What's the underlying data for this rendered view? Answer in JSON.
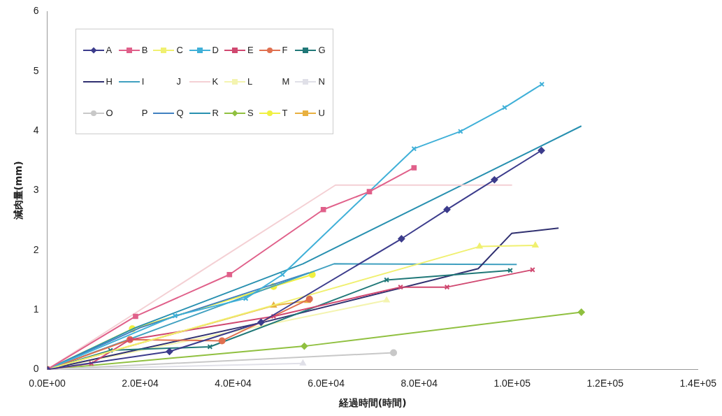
{
  "chart_data": {
    "type": "line",
    "xlabel": "経過時間(時間)",
    "ylabel": "減肉量(mm)",
    "legend": "top left",
    "xlim": [
      0,
      140000
    ],
    "ylim": [
      0,
      6
    ],
    "xticks": [
      {
        "value": 0,
        "label": "0.0E+00"
      },
      {
        "value": 20000,
        "label": "2.0E+04"
      },
      {
        "value": 40000,
        "label": "4.0E+04"
      },
      {
        "value": 60000,
        "label": "6.0E+04"
      },
      {
        "value": 80000,
        "label": "8.0E+04"
      },
      {
        "value": 100000,
        "label": "1.0E+05"
      },
      {
        "value": 120000,
        "label": "1.2E+05"
      },
      {
        "value": 140000,
        "label": "1.4E+05"
      }
    ],
    "yticks": [
      0,
      1,
      2,
      3,
      4,
      5,
      6
    ],
    "series": [
      {
        "name": "A",
        "color": "#3c3c8c",
        "marker": "diamond",
        "x": [
          0,
          26300,
          46000,
          76200,
          86000,
          96200,
          106300
        ],
        "values": [
          0,
          0.3,
          0.79,
          2.19,
          2.68,
          3.18,
          3.67
        ]
      },
      {
        "name": "B",
        "color": "#e0608a",
        "marker": "square",
        "x": [
          0,
          19000,
          39200,
          59400,
          69300,
          78900
        ],
        "values": [
          0,
          0.89,
          1.59,
          2.68,
          2.98,
          3.38
        ]
      },
      {
        "name": "C",
        "color": "#f0f070",
        "marker": "triangle",
        "x": [
          0,
          93000,
          105000
        ],
        "values": [
          0,
          2.06,
          2.08
        ]
      },
      {
        "name": "D",
        "color": "#40b0d8",
        "marker": "cross",
        "x": [
          0,
          27500,
          42700,
          50600,
          78900,
          88900,
          98400,
          106400
        ],
        "values": [
          0,
          0.9,
          1.19,
          1.59,
          3.7,
          3.99,
          4.39,
          4.78
        ]
      },
      {
        "name": "E",
        "color": "#d04870",
        "marker": "cross",
        "x": [
          0,
          9500,
          17800,
          48700,
          76000,
          86000,
          104400
        ],
        "values": [
          0,
          0.1,
          0.5,
          0.89,
          1.38,
          1.38,
          1.67
        ]
      },
      {
        "name": "F",
        "color": "#e07050",
        "marker": "circle",
        "x": [
          0,
          17800,
          37600,
          56400
        ],
        "values": [
          0,
          0.5,
          0.48,
          1.18
        ]
      },
      {
        "name": "G",
        "color": "#207878",
        "marker": "cross",
        "x": [
          0,
          13600,
          35000,
          73000,
          99600
        ],
        "values": [
          0,
          0.32,
          0.38,
          1.5,
          1.66
        ]
      },
      {
        "name": "H",
        "color": "#303070",
        "marker": "none",
        "x": [
          0,
          47000,
          92700,
          99900,
          110000
        ],
        "values": [
          0,
          0.8,
          1.69,
          2.28,
          2.37
        ]
      },
      {
        "name": "I",
        "color": "#40a0c0",
        "marker": "none",
        "x": [
          0,
          61700,
          101000
        ],
        "values": [
          0,
          1.77,
          1.76
        ]
      },
      {
        "name": "J"
      },
      {
        "name": "K",
        "color": "#f4d0d4",
        "marker": "none",
        "x": [
          0,
          62000,
          100000
        ],
        "values": [
          0,
          3.09,
          3.09
        ]
      },
      {
        "name": "L",
        "color": "#f4f4b0",
        "marker": "triangle",
        "x": [
          0,
          73000
        ],
        "values": [
          0,
          1.16
        ]
      },
      {
        "name": "M"
      },
      {
        "name": "N",
        "color": "#e0e0e8",
        "marker": "triangle",
        "x": [
          0,
          55000
        ],
        "values": [
          0,
          0.1
        ]
      },
      {
        "name": "O",
        "color": "#c8c8c8",
        "marker": "circle",
        "x": [
          0,
          74500
        ],
        "values": [
          0,
          0.28
        ]
      },
      {
        "name": "P"
      },
      {
        "name": "Q",
        "color": "#4080c0",
        "marker": "none",
        "x": [
          0,
          20000,
          56300
        ],
        "values": [
          0,
          0.7,
          1.62
        ]
      },
      {
        "name": "R",
        "color": "#2890b0",
        "marker": "none",
        "x": [
          0,
          19000,
          55000,
          114900
        ],
        "values": [
          0,
          0.7,
          1.77,
          4.08
        ]
      },
      {
        "name": "S",
        "color": "#90c040",
        "marker": "diamond",
        "x": [
          0,
          55300,
          114900
        ],
        "values": [
          0,
          0.39,
          0.96
        ]
      },
      {
        "name": "T",
        "color": "#f0f040",
        "marker": "circle",
        "x": [
          0,
          18300,
          48700,
          57000
        ],
        "values": [
          0,
          0.68,
          1.39,
          1.59
        ]
      },
      {
        "name": "U",
        "color": "#e8b040",
        "marker": "triangle",
        "x": [
          0,
          48700,
          56000
        ],
        "values": [
          0,
          1.07,
          1.15
        ]
      }
    ]
  }
}
